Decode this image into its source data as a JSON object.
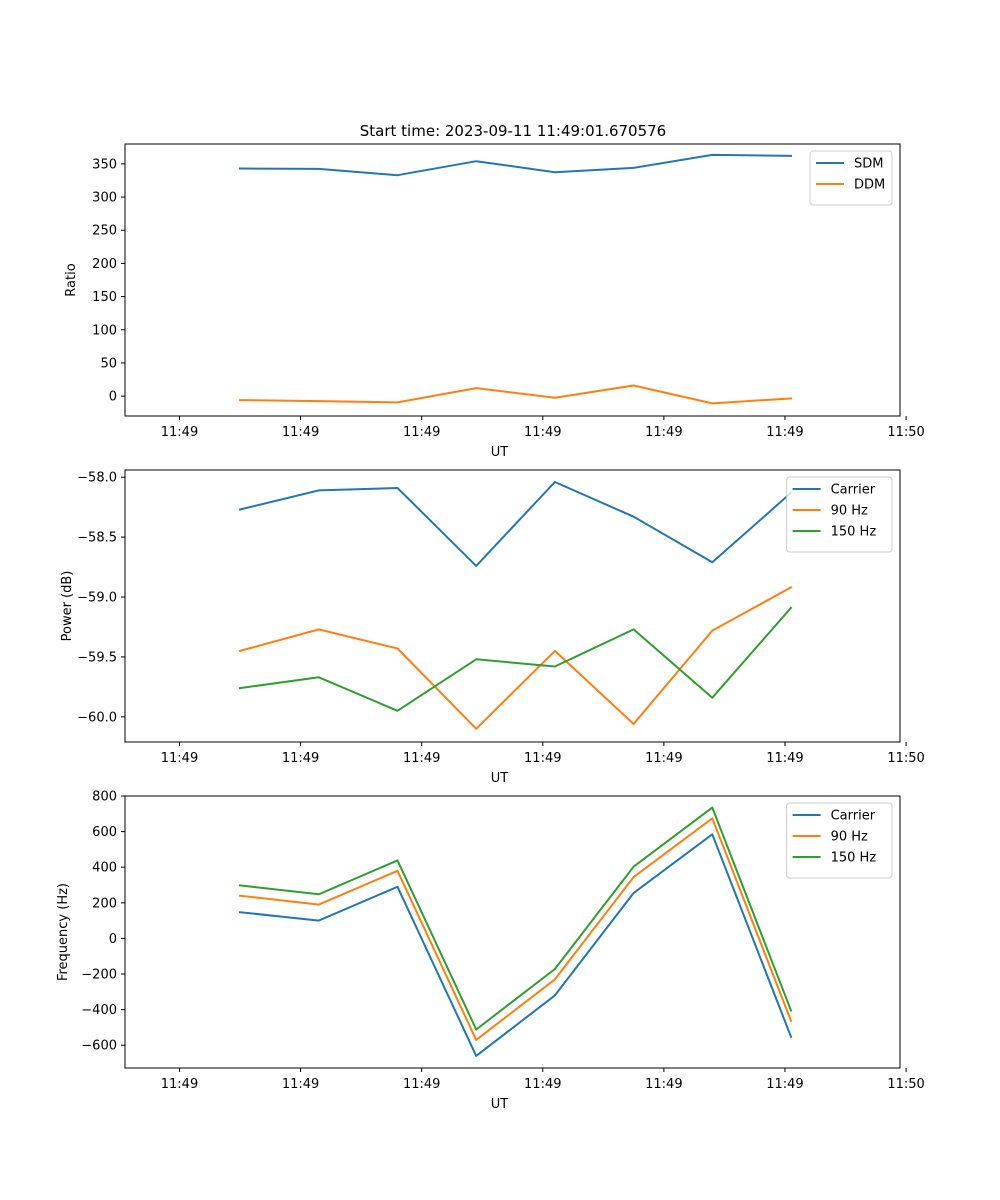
{
  "figure": {
    "title": "Start time: 2023-09-11 11:49:01.670576"
  },
  "chart_data": [
    {
      "type": "line",
      "name": "ratio-panel",
      "title": "Start time: 2023-09-11 11:49:01.670576",
      "xlabel": "UT",
      "ylabel": "Ratio",
      "x": [
        0.5,
        1.15,
        1.8,
        2.45,
        3.1,
        3.75,
        4.4,
        5.05
      ],
      "xlim": [
        -0.45,
        5.95
      ],
      "ylim": [
        -30,
        380
      ],
      "x_ticks": [
        0,
        1,
        2,
        3,
        4,
        5,
        6
      ],
      "x_tick_labels": [
        "11:49",
        "11:49",
        "11:49",
        "11:49",
        "11:49",
        "11:49",
        "11:50"
      ],
      "y_ticks": [
        0,
        50,
        100,
        150,
        200,
        250,
        300,
        350
      ],
      "y_tick_labels": [
        "0",
        "50",
        "100",
        "150",
        "200",
        "250",
        "300",
        "350"
      ],
      "legend_position": "top-right",
      "series": [
        {
          "name": "SDM",
          "color": "#1f77b4",
          "values": [
            343,
            342.5,
            333,
            354,
            337.5,
            344,
            363.5,
            362
          ]
        },
        {
          "name": "DDM",
          "color": "#ff7f0e",
          "values": [
            -6,
            -7.5,
            -9.5,
            12,
            -2.5,
            16,
            -11,
            -3.5
          ]
        }
      ]
    },
    {
      "type": "line",
      "name": "power-panel",
      "title": "",
      "xlabel": "UT",
      "ylabel": "Power (dB)",
      "x": [
        0.5,
        1.15,
        1.8,
        2.45,
        3.1,
        3.75,
        4.4,
        5.05
      ],
      "xlim": [
        -0.45,
        5.95
      ],
      "ylim": [
        -60.21,
        -57.94
      ],
      "x_ticks": [
        0,
        1,
        2,
        3,
        4,
        5,
        6
      ],
      "x_tick_labels": [
        "11:49",
        "11:49",
        "11:49",
        "11:49",
        "11:49",
        "11:49",
        "11:50"
      ],
      "y_ticks": [
        -58.0,
        -58.5,
        -59.0,
        -59.5,
        -60.0
      ],
      "y_tick_labels": [
        "−58.0",
        "−58.5",
        "−59.0",
        "−59.5",
        "−60.0"
      ],
      "legend_position": "top-right",
      "series": [
        {
          "name": "Carrier",
          "color": "#1f77b4",
          "values": [
            -58.27,
            -58.11,
            -58.09,
            -58.74,
            -58.04,
            -58.33,
            -58.71,
            -58.13
          ]
        },
        {
          "name": "90 Hz",
          "color": "#ff7f0e",
          "values": [
            -59.45,
            -59.27,
            -59.43,
            -60.1,
            -59.45,
            -60.06,
            -59.28,
            -58.92
          ]
        },
        {
          "name": "150 Hz",
          "color": "#2ca02c",
          "values": [
            -59.76,
            -59.67,
            -59.95,
            -59.52,
            -59.58,
            -59.27,
            -59.84,
            -59.09
          ]
        }
      ]
    },
    {
      "type": "line",
      "name": "frequency-panel",
      "title": "",
      "xlabel": "UT",
      "ylabel": "Frequency (Hz)",
      "x": [
        0.5,
        1.15,
        1.8,
        2.45,
        3.1,
        3.75,
        4.4,
        5.05
      ],
      "xlim": [
        -0.45,
        5.95
      ],
      "ylim": [
        -728,
        800
      ],
      "x_ticks": [
        0,
        1,
        2,
        3,
        4,
        5,
        6
      ],
      "x_tick_labels": [
        "11:49",
        "11:49",
        "11:49",
        "11:49",
        "11:49",
        "11:49",
        "11:50"
      ],
      "y_ticks": [
        -600,
        -400,
        -200,
        0,
        200,
        400,
        600,
        800
      ],
      "y_tick_labels": [
        "−600",
        "−400",
        "−200",
        "0",
        "200",
        "400",
        "600",
        "800"
      ],
      "legend_position": "top-right",
      "series": [
        {
          "name": "Carrier",
          "color": "#1f77b4",
          "values": [
            147,
            100,
            290,
            -660,
            -320,
            255,
            585,
            -553
          ]
        },
        {
          "name": "90 Hz",
          "color": "#ff7f0e",
          "values": [
            240,
            190,
            380,
            -570,
            -230,
            345,
            675,
            -463
          ]
        },
        {
          "name": "150 Hz",
          "color": "#2ca02c",
          "values": [
            298,
            248,
            438,
            -512,
            -172,
            403,
            735,
            -405
          ]
        }
      ]
    }
  ]
}
